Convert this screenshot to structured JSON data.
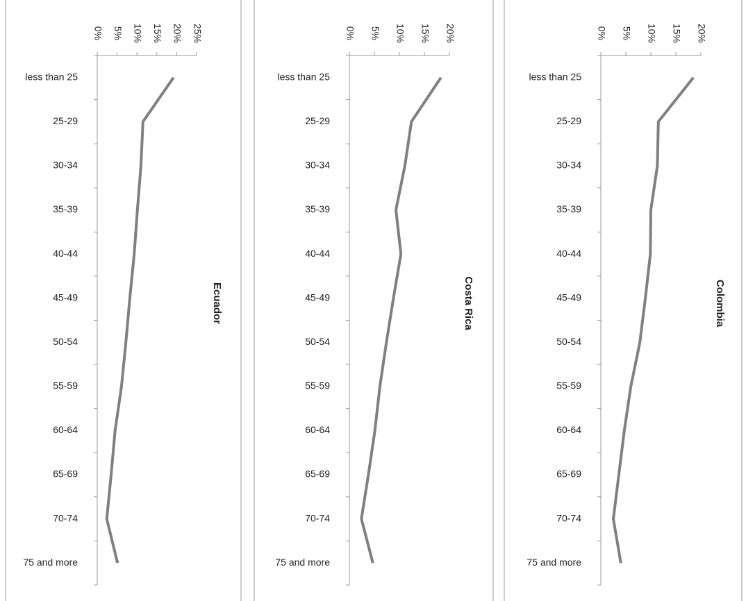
{
  "chart_data": [
    {
      "type": "line",
      "title": "Ecuador",
      "orientation": "horizontal",
      "categories": [
        "less than 25",
        "25-29",
        "30-34",
        "35-39",
        "40-44",
        "45-49",
        "50-54",
        "55-59",
        "60-64",
        "65-69",
        "70-74",
        "75 and more"
      ],
      "values": [
        19.2,
        11.5,
        11.0,
        10.1,
        9.3,
        8.2,
        7.2,
        6.1,
        4.5,
        3.5,
        2.4,
        5.1
      ],
      "color": "#808080",
      "xlim": [
        0,
        25
      ],
      "xticks": [
        {
          "value": 0,
          "label": "0%"
        },
        {
          "value": 5,
          "label": "5%"
        },
        {
          "value": 10,
          "label": "10%"
        },
        {
          "value": 15,
          "label": "15%"
        },
        {
          "value": 20,
          "label": "20%"
        },
        {
          "value": 25,
          "label": "25%"
        }
      ]
    },
    {
      "type": "line",
      "title": "Costa Rica",
      "orientation": "horizontal",
      "categories": [
        "less than 25",
        "25-29",
        "30-34",
        "35-39",
        "40-44",
        "45-49",
        "50-54",
        "55-59",
        "60-64",
        "65-69",
        "70-74",
        "75 and more"
      ],
      "values": [
        18.3,
        12.4,
        11.1,
        9.3,
        10.3,
        8.8,
        7.4,
        6.1,
        5.1,
        3.8,
        2.4,
        4.7
      ],
      "color": "#808080",
      "xlim": [
        0,
        20
      ],
      "xticks": [
        {
          "value": 0,
          "label": "0%"
        },
        {
          "value": 5,
          "label": "5%"
        },
        {
          "value": 10,
          "label": "10%"
        },
        {
          "value": 15,
          "label": "15%"
        },
        {
          "value": 20,
          "label": "20%"
        }
      ]
    },
    {
      "type": "line",
      "title": "Colombia",
      "orientation": "horizontal",
      "categories": [
        "less than 25",
        "25-29",
        "30-34",
        "35-39",
        "40-44",
        "45-49",
        "50-54",
        "55-59",
        "60-64",
        "65-69",
        "70-74",
        "75 and more"
      ],
      "values": [
        18.5,
        11.5,
        11.3,
        10.0,
        9.9,
        8.9,
        7.8,
        6.0,
        4.7,
        3.6,
        2.5,
        4.0
      ],
      "color": "#808080",
      "xlim": [
        0,
        20
      ],
      "xticks": [
        {
          "value": 0,
          "label": "0%"
        },
        {
          "value": 5,
          "label": "5%"
        },
        {
          "value": 10,
          "label": "10%"
        },
        {
          "value": 15,
          "label": "15%"
        },
        {
          "value": 20,
          "label": "20%"
        }
      ]
    }
  ]
}
